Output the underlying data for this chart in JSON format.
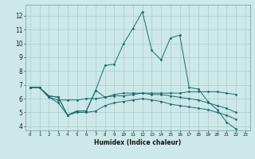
{
  "xlabel": "Humidex (Indice chaleur)",
  "bg_color": "#cce8e8",
  "grid_color": "#aacccc",
  "line_color": "#1a6b6b",
  "x_range": [
    -0.5,
    23.5
  ],
  "y_range": [
    3.7,
    12.8
  ],
  "yticks": [
    4,
    5,
    6,
    7,
    8,
    9,
    10,
    11,
    12
  ],
  "series": [
    {
      "x": [
        0,
        1,
        2,
        3,
        4,
        5,
        6,
        7,
        8,
        9,
        10,
        11,
        12,
        13,
        14,
        15,
        16,
        17,
        18,
        19,
        20,
        21,
        22
      ],
      "y": [
        6.8,
        6.8,
        6.2,
        6.1,
        4.8,
        5.1,
        5.1,
        6.6,
        8.4,
        8.5,
        10.0,
        11.1,
        12.3,
        9.5,
        8.8,
        10.4,
        10.6,
        6.8,
        6.7,
        5.8,
        5.2,
        4.3,
        3.8
      ]
    },
    {
      "x": [
        0,
        1,
        2,
        3,
        4,
        5,
        6,
        7,
        8,
        9,
        10,
        11,
        12,
        13,
        14,
        15,
        16,
        17,
        18,
        19,
        20,
        21,
        22
      ],
      "y": [
        6.8,
        6.8,
        6.1,
        5.9,
        5.9,
        5.9,
        6.0,
        6.0,
        6.1,
        6.2,
        6.2,
        6.3,
        6.4,
        6.4,
        6.4,
        6.4,
        6.4,
        6.5,
        6.5,
        6.5,
        6.5,
        6.4,
        6.3
      ]
    },
    {
      "x": [
        0,
        1,
        2,
        3,
        4,
        5,
        6,
        7,
        8,
        9,
        10,
        11,
        12,
        13,
        14,
        15,
        16,
        17,
        18,
        19,
        20,
        21,
        22
      ],
      "y": [
        6.8,
        6.8,
        6.1,
        5.7,
        4.8,
        5.0,
        5.0,
        5.1,
        5.5,
        5.7,
        5.8,
        5.9,
        6.0,
        5.9,
        5.8,
        5.6,
        5.5,
        5.4,
        5.3,
        5.2,
        5.0,
        4.8,
        4.5
      ]
    },
    {
      "x": [
        0,
        1,
        2,
        3,
        4,
        5,
        6,
        7,
        8,
        9,
        10,
        11,
        12,
        13,
        14,
        15,
        16,
        17,
        18,
        19,
        20,
        21,
        22
      ],
      "y": [
        6.8,
        6.8,
        6.2,
        6.1,
        4.8,
        5.1,
        5.1,
        6.6,
        6.1,
        6.3,
        6.4,
        6.4,
        6.4,
        6.3,
        6.3,
        6.2,
        6.1,
        6.0,
        5.9,
        5.7,
        5.5,
        5.3,
        5.0
      ]
    }
  ]
}
